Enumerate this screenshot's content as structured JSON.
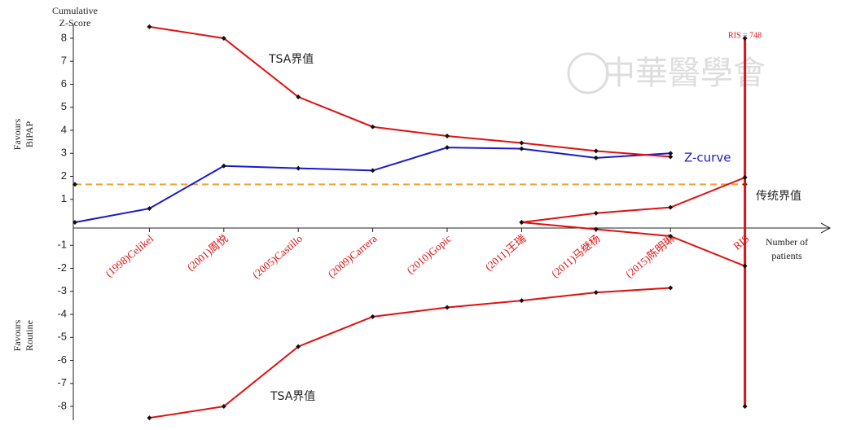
{
  "chart_data": {
    "type": "line",
    "y_label": [
      "Cumulative",
      "Z-Score"
    ],
    "x_label": [
      "Number of",
      "patients"
    ],
    "favours_top": [
      "Favours",
      "BiPAP"
    ],
    "favours_bottom": [
      "Favours",
      "Routine"
    ],
    "watermark": "中華醫學會",
    "categories": [
      null,
      "(1998)Celikel",
      "(2001)周悦",
      "(2005)Castillo",
      "(2009)Carrera",
      "(2010)Gopic",
      "(2011)王瑞",
      "(2011)马继杨",
      "(2015)陈明琳",
      "RIS"
    ],
    "series": [
      {
        "name": "Z-curve",
        "color": "#1a1acc",
        "values": [
          0,
          0.6,
          2.45,
          2.35,
          2.25,
          3.25,
          3.2,
          2.8,
          3.0,
          null
        ]
      },
      {
        "name": "TSA界值",
        "color": "#e01010",
        "values": [
          null,
          8.5,
          8.0,
          5.45,
          4.15,
          3.75,
          3.45,
          3.1,
          2.85,
          null
        ]
      },
      {
        "name": "TSA界值",
        "color": "#e01010",
        "values": [
          null,
          -8.5,
          -8.0,
          -5.4,
          -4.1,
          -3.7,
          -3.4,
          -3.05,
          -2.85,
          null
        ]
      },
      {
        "color": "#e01010",
        "values": [
          null,
          null,
          null,
          null,
          null,
          null,
          0,
          0.4,
          0.65,
          1.95
        ]
      },
      {
        "color": "#e01010",
        "values": [
          null,
          null,
          null,
          null,
          null,
          null,
          0,
          -0.3,
          -0.6,
          -1.9
        ]
      }
    ],
    "reference": {
      "label": "传统界值",
      "value": 1.65,
      "color": "#f0a030"
    },
    "ris": {
      "label": "RIS = 748",
      "values": [
        8,
        -8
      ],
      "color": "#e01010"
    },
    "ylim": [
      -8.6,
      8.6
    ],
    "yticks": [
      -8,
      -7,
      -6,
      -5,
      -4,
      -3,
      -2,
      -1,
      1,
      2,
      3,
      4,
      5,
      6,
      7,
      8
    ]
  }
}
